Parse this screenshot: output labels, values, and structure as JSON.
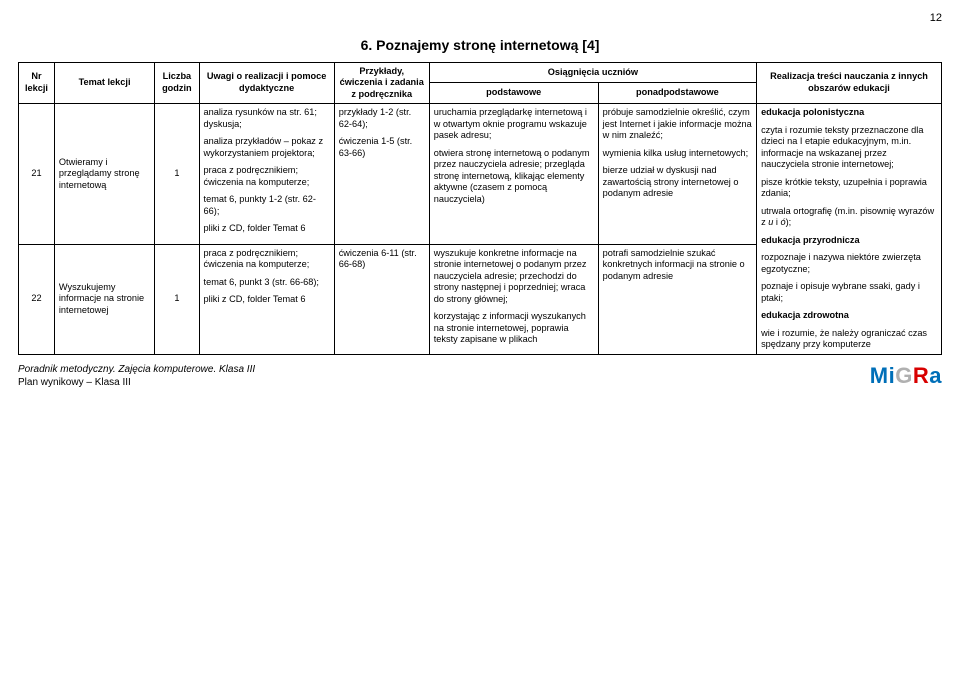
{
  "page_number": "12",
  "section_title": "6. Poznajemy stronę internetową [4]",
  "header": {
    "nr": "Nr lekcji",
    "temat": "Temat lekcji",
    "liczba": "Liczba godzin",
    "uwagi": "Uwagi o realizacji i pomoce dydaktyczne",
    "przyklady": "Przykłady, ćwiczenia i zadania z podręcznika",
    "osiagniecia": "Osiągnięcia uczniów",
    "podstawowe": "podstawowe",
    "ponad": "ponadpodstawowe",
    "realizacja": "Realizacja treści nauczania z innych obszarów edukacji"
  },
  "rows": [
    {
      "nr": "21",
      "temat": "Otwieramy i przeglądamy stronę internetową",
      "liczba": "1",
      "uwagi": [
        "analiza rysunków na str. 61; dyskusja;",
        "analiza przykładów – pokaz z wykorzystaniem projektora;",
        "praca z podręcznikiem; ćwiczenia na komputerze;",
        "temat 6, punkty 1-2 (str. 62-66);",
        "pliki z CD, folder Temat 6"
      ],
      "przyklady": [
        "przykłady 1-2 (str. 62-64);",
        "ćwiczenia 1-5 (str. 63-66)"
      ],
      "podstawowe": [
        "uruchamia przeglądarkę internetową i w otwartym oknie programu wskazuje pasek adresu;",
        "otwiera stronę internetową o podanym przez nauczyciela adresie; przegląda stronę internetową, klikając elementy aktywne (czasem z pomocą nauczyciela)"
      ],
      "ponad": [
        "próbuje samodzielnie określić, czym jest Internet i jakie informacje można w nim znaleźć;",
        "wymienia kilka usług internetowych;",
        "bierze udział w dyskusji nad zawartością strony internetowej o podanym adresie"
      ]
    },
    {
      "nr": "22",
      "temat": "Wyszukujemy informacje na stronie internetowej",
      "liczba": "1",
      "uwagi": [
        "praca z podręcznikiem; ćwiczenia na komputerze;",
        "temat 6, punkt 3 (str. 66-68);",
        "pliki z CD, folder Temat 6"
      ],
      "przyklady": [
        "ćwiczenia 6-11 (str. 66-68)"
      ],
      "podstawowe": [
        "wyszukuje konkretne informacje na stronie internetowej o podanym przez nauczyciela adresie; przechodzi do strony następnej i poprzedniej; wraca do strony głównej;",
        "korzystając z informacji wyszukanych na stronie internetowej, poprawia teksty zapisane w plikach"
      ],
      "ponad": [
        "potrafi samodzielnie szukać konkretnych informacji na stronie o podanym adresie"
      ]
    }
  ],
  "realizacja_merged": {
    "p1_bold": "edukacja polonistyczna",
    "p2": "czyta i rozumie teksty przeznaczone dla dzieci na I etapie edukacyjnym, m.in. informacje na wskazanej przez nauczyciela stronie internetowej;",
    "p3": "pisze krótkie teksty, uzupełnia i poprawia zdania;",
    "p4_pre": "utrwala ortografię (m.in. pisownię wyrazów z ",
    "p4_ui": "u",
    "p4_mid": " i ",
    "p4_o": "ó",
    "p4_post": ");",
    "p5_bold": "edukacja przyrodnicza",
    "p6": "rozpoznaje i nazywa niektóre zwierzęta egzotyczne;",
    "p7": "poznaje i opisuje wybrane ssaki, gady i ptaki;",
    "p8_bold": "edukacja zdrowotna",
    "p9": "wie i rozumie, że należy ograniczać czas spędzany przy komputerze"
  },
  "footer": {
    "line1": "Poradnik metodyczny. Zajęcia komputerowe. Klasa III",
    "line2": "Plan wynikowy – Klasa III",
    "logo_mi": "Mi",
    "logo_g": "G",
    "logo_r": "R",
    "logo_a": "a"
  }
}
